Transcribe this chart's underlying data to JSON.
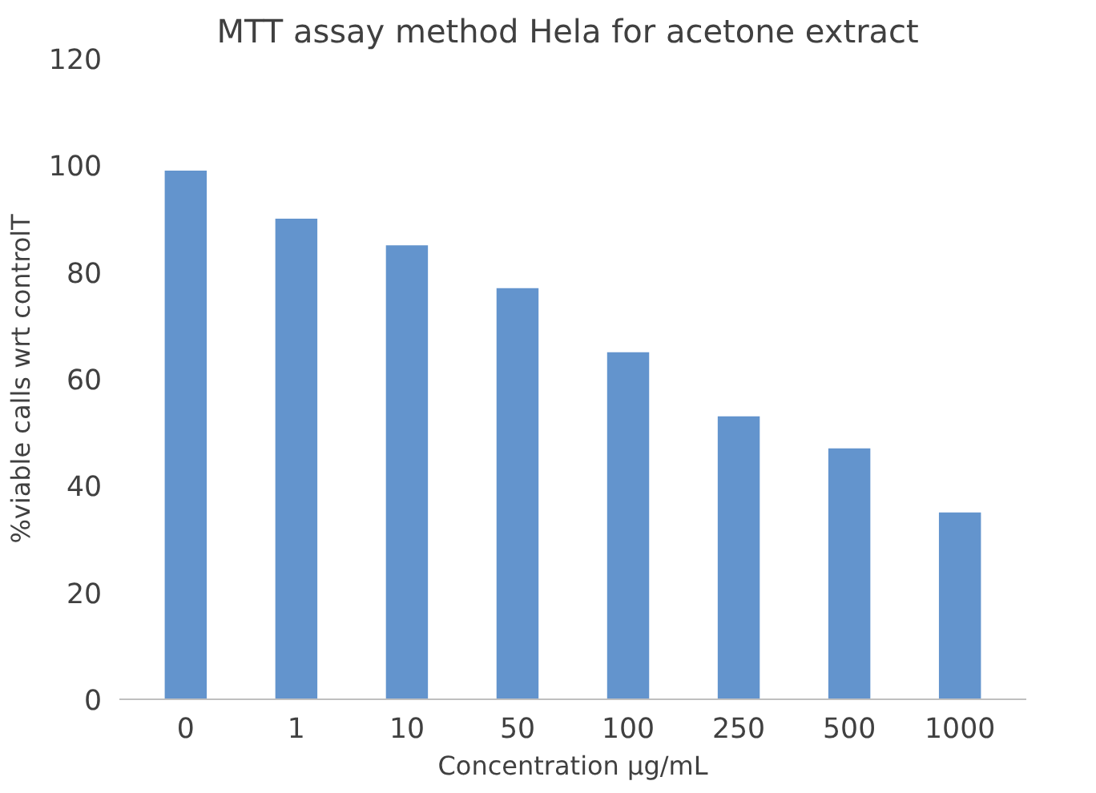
{
  "chart_data": {
    "type": "bar",
    "title": "MTT assay method Hela for acetone  extract",
    "xlabel": "Concentration µg/mL",
    "ylabel": "%viable calls wrt controlT",
    "categories": [
      "0",
      "1",
      "10",
      "50",
      "100",
      "250",
      "500",
      "1000"
    ],
    "values": [
      99,
      90,
      85,
      77,
      65,
      53,
      47,
      35
    ],
    "color": "#6394cd",
    "ylim": [
      0,
      120
    ],
    "yticks": [
      0,
      20,
      40,
      60,
      80,
      100,
      120
    ],
    "grid": false
  }
}
